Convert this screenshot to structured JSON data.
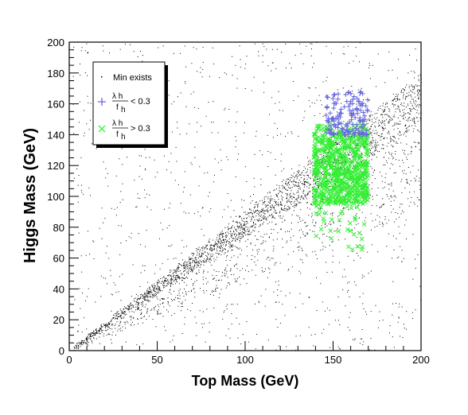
{
  "chart_data": {
    "type": "scatter",
    "title": "",
    "xlabel": "Top Mass (GeV)",
    "ylabel": "Higgs Mass (GeV)",
    "xlim": [
      0,
      200
    ],
    "ylim": [
      0,
      200
    ],
    "xticks": [
      0,
      50,
      100,
      150,
      200
    ],
    "yticks": [
      0,
      20,
      40,
      60,
      80,
      100,
      120,
      140,
      160,
      180,
      200
    ],
    "grid": false,
    "legend_position": "top-left",
    "legend": {
      "min_exists": "Min exists",
      "low": {
        "num": "λ h",
        "den": "f",
        "sub": "h",
        "rel": "< 0.3"
      },
      "high": {
        "num": "λ h",
        "den": "f",
        "sub": "h",
        "rel": "> 0.3"
      }
    },
    "series": [
      {
        "name": "Min exists",
        "marker": "dot",
        "color": "#000000",
        "regions": [
          {
            "x": [
              2,
              200
            ],
            "slope_min": 0.74,
            "slope_max": 0.9,
            "weight": 0.55
          },
          {
            "x": [
              2,
              200
            ],
            "slope_min": 0.45,
            "slope_max": 0.74,
            "weight": 0.18
          },
          {
            "x": [
              2,
              200
            ],
            "slope_min": 0.0,
            "slope_max": 2.0,
            "weight": 0.27
          }
        ]
      },
      {
        "name": "λh/fh > 0.3",
        "marker": "x",
        "color": "#33ee33",
        "box": {
          "x": [
            139,
            170
          ],
          "y": [
            95,
            150
          ]
        },
        "tail": {
          "x": [
            140,
            168
          ],
          "y": [
            65,
            100
          ]
        }
      },
      {
        "name": "λh/fh < 0.3",
        "marker": "plus",
        "color": "#6666dd",
        "box": {
          "x": [
            146,
            170
          ],
          "y": [
            140,
            168
          ]
        }
      }
    ]
  }
}
